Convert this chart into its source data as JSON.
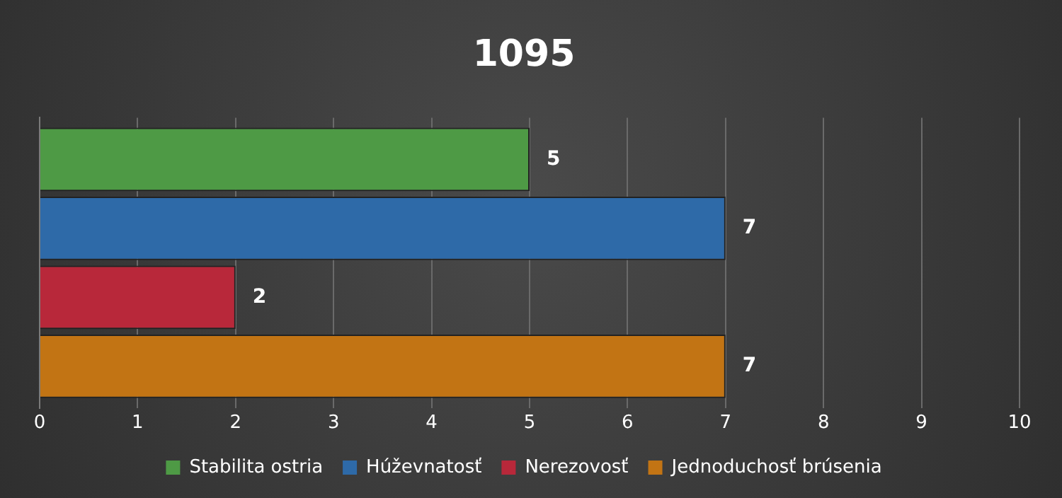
{
  "chart_data": {
    "type": "bar",
    "title": "1095",
    "orientation": "horizontal",
    "categories": [
      null
    ],
    "series": [
      {
        "name": "Stabilita ostria",
        "color": "#4e9a45",
        "values": [
          5
        ]
      },
      {
        "name": "Húževnatosť",
        "color": "#2e6aa8",
        "values": [
          7
        ]
      },
      {
        "name": "Nerezovosť",
        "color": "#b8283a",
        "values": [
          2
        ]
      },
      {
        "name": "Jednoduchosť brúsenia",
        "color": "#c27414",
        "values": [
          7
        ]
      }
    ],
    "xlim": [
      0,
      10
    ],
    "xticks": [
      0,
      1,
      2,
      3,
      4,
      5,
      6,
      7,
      8,
      9,
      10
    ],
    "grid": "x",
    "legend": "bottom",
    "data_labels": true
  }
}
